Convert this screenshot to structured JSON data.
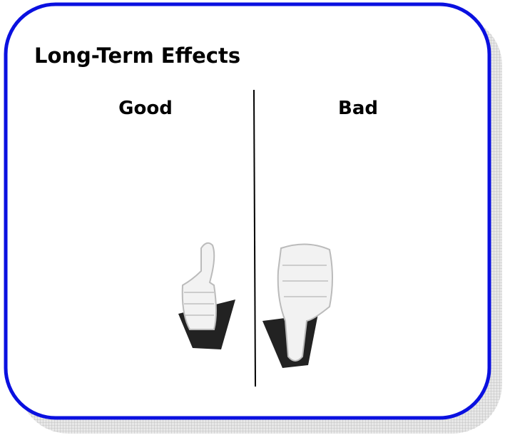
{
  "header": {
    "title": "Long-Term Effects"
  },
  "columns": [
    {
      "label": "Good"
    },
    {
      "label": "Bad"
    }
  ]
}
